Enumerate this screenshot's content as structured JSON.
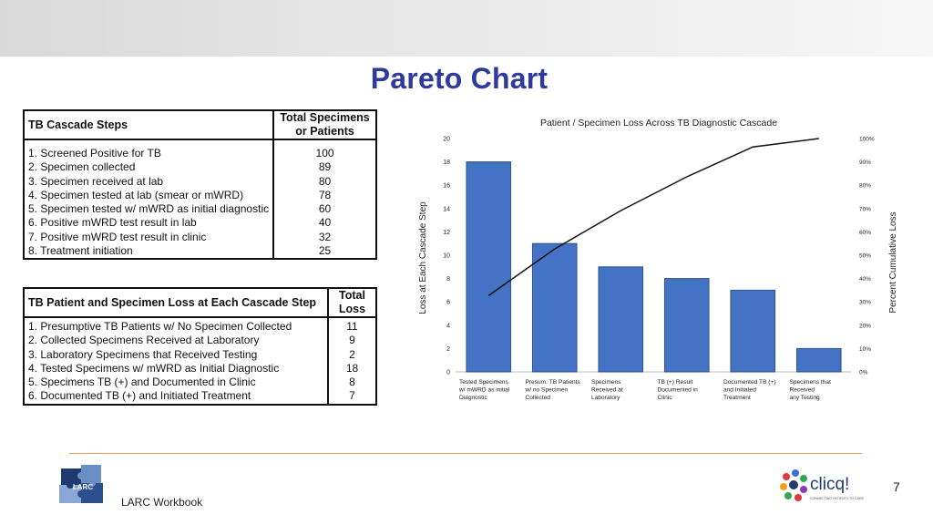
{
  "slide": {
    "title": "Pareto Chart",
    "footer": "LARC Workbook",
    "page_number": "7",
    "logos": {
      "left": "LARC",
      "right": "clicq!",
      "right_tagline": "CONNECTING PATIENTS TO CARE"
    },
    "colors": {
      "title": "#2e3a9c",
      "bar": "#4472c4",
      "divider": "#f0a050"
    }
  },
  "table1": {
    "header": [
      "TB Cascade Steps",
      "Total Specimens or Patients"
    ],
    "rows": [
      [
        "1. Screened Positive for TB",
        "100"
      ],
      [
        "2. Specimen collected",
        "89"
      ],
      [
        "3. Specimen received at lab",
        "80"
      ],
      [
        "4. Specimen tested at lab (smear or mWRD)",
        "78"
      ],
      [
        "5. Specimen tested w/ mWRD as initial diagnostic",
        "60"
      ],
      [
        "6. Positive mWRD test result in lab",
        "40"
      ],
      [
        "7. Positive mWRD test result in clinic",
        "32"
      ],
      [
        "8. Treatment initiation",
        "25"
      ]
    ]
  },
  "table2": {
    "header": [
      "TB Patient and Specimen Loss at Each Cascade Step",
      "Total Loss"
    ],
    "rows": [
      [
        "1. Presumptive TB Patients w/ No Specimen Collected",
        "11"
      ],
      [
        "2. Collected Specimens Received at Laboratory",
        "9"
      ],
      [
        "3. Laboratory Specimens that Received Testing",
        "2"
      ],
      [
        "4. Tested Specimens w/ mWRD as Initial Diagnostic",
        "18"
      ],
      [
        "5. Specimens TB (+) and Documented in Clinic",
        "8"
      ],
      [
        "6. Documented TB (+) and Initiated Treatment",
        "7"
      ]
    ]
  },
  "chart_data": {
    "type": "bar",
    "title": "Patient / Specimen Loss Across TB Diagnostic Cascade",
    "ylabel": "Loss at Each Cascade Step",
    "y2label": "Percent Cumulative Loss",
    "categories": [
      [
        "Tested Specimens",
        "w/ mWRD as initial",
        "Diagnostic"
      ],
      [
        "Presum. TB Patients",
        "w/ no Specimen",
        "Collected"
      ],
      [
        "Specimens",
        "Received at",
        "Laboratory"
      ],
      [
        "TB (+) Result",
        "Documented in",
        "Clinic"
      ],
      [
        "Documented TB (+)",
        "and Initiated",
        "Treatment"
      ],
      [
        "Specimens that",
        "Received",
        "any Testing"
      ]
    ],
    "values": [
      18,
      11,
      9,
      8,
      7,
      2
    ],
    "cumulative_percent": [
      32.7,
      52.7,
      69.1,
      83.6,
      96.4,
      100
    ],
    "ylim": [
      0,
      20
    ],
    "yticks": [
      "0",
      "2",
      "4",
      "6",
      "8",
      "10",
      "12",
      "14",
      "16",
      "18",
      "20"
    ],
    "y2lim": [
      0,
      100
    ],
    "y2ticks": [
      "0%",
      "10%",
      "20%",
      "30%",
      "40%",
      "50%",
      "60%",
      "70%",
      "80%",
      "90%",
      "100%"
    ],
    "grid": false,
    "legend": "none"
  }
}
